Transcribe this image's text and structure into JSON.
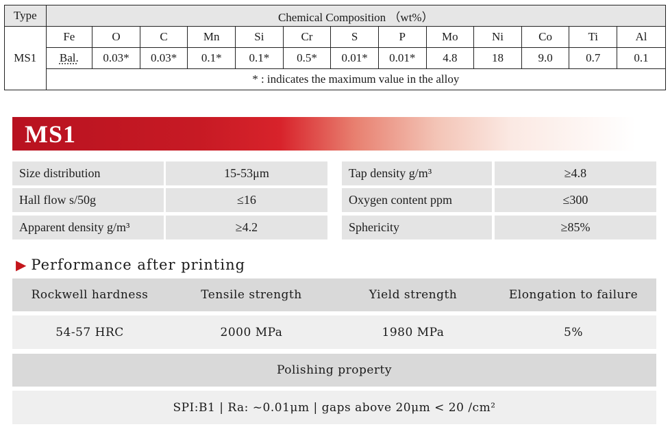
{
  "chem": {
    "type_label": "Type",
    "title": "Chemical Composition （wt%）",
    "material": "MS1",
    "elements": [
      "Fe",
      "O",
      "C",
      "Mn",
      "Si",
      "Cr",
      "S",
      "P",
      "Mo",
      "Ni",
      "Co",
      "Ti",
      "Al"
    ],
    "values": [
      "Bal.",
      "0.03*",
      "0.03*",
      "0.1*",
      "0.1*",
      "0.5*",
      "0.01*",
      "0.01*",
      "4.8",
      "18",
      "9.0",
      "0.7",
      "0.1"
    ],
    "note": "* : indicates the maximum value in the alloy"
  },
  "banner": {
    "title": "MS1"
  },
  "powder": {
    "left": [
      {
        "label": "Size distribution",
        "value": "15-53μm"
      },
      {
        "label": "Hall flow s/50g",
        "value": "≤16"
      },
      {
        "label": "Apparent density g/m³",
        "value": "≥4.2"
      }
    ],
    "right": [
      {
        "label": "Tap density g/m³",
        "value": "≥4.8"
      },
      {
        "label": "Oxygen content ppm",
        "value": "≤300"
      },
      {
        "label": "Sphericity",
        "value": "≥85%"
      }
    ]
  },
  "performance": {
    "title": "Performance after printing",
    "arrow_icon": "triangle-right-icon",
    "headers": [
      "Rockwell hardness",
      "Tensile strength",
      "Yield strength",
      "Elongation to failure"
    ],
    "values": [
      "54-57 HRC",
      "2000 MPa",
      "1980 MPa",
      "5%"
    ]
  },
  "polishing": {
    "title": "Polishing property",
    "value": "SPI:B1 | Ra: ~0.01μm | gaps above 20μm < 20 /cm²"
  },
  "colors": {
    "accent_red": "#c4161c",
    "cell_gray": "#e4e4e4"
  }
}
